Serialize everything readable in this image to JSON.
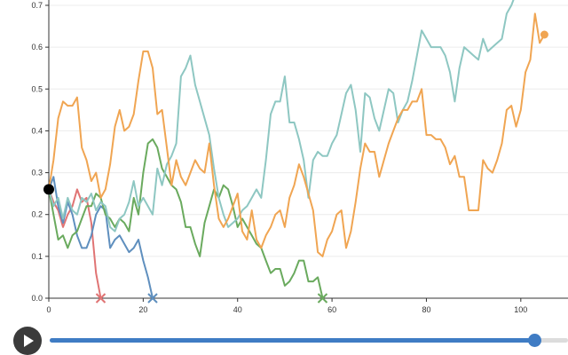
{
  "chart_data": {
    "type": "line",
    "xlim": [
      0,
      110
    ],
    "ylim": [
      0,
      0.7
    ],
    "x_ticks": [
      "0",
      "20",
      "40",
      "60",
      "80",
      "100"
    ],
    "y_ticks": [
      "0.0",
      "0.1",
      "0.2",
      "0.3",
      "0.4",
      "0.5",
      "0.6",
      "0.7"
    ],
    "grid": "horizontal",
    "start_marker": {
      "x": 0,
      "y": 0.26,
      "color": "#000000"
    },
    "series": [
      {
        "color": "#e07474",
        "end_marker": "cross",
        "points": [
          [
            0,
            0.26
          ],
          [
            1,
            0.23
          ],
          [
            2,
            0.21
          ],
          [
            3,
            0.17
          ],
          [
            4,
            0.2
          ],
          [
            5,
            0.22
          ],
          [
            6,
            0.26
          ],
          [
            7,
            0.23
          ],
          [
            8,
            0.24
          ],
          [
            9,
            0.18
          ],
          [
            10,
            0.06
          ],
          [
            11,
            0.0
          ]
        ]
      },
      {
        "color": "#5f8fbe",
        "end_marker": "cross",
        "points": [
          [
            0,
            0.26
          ],
          [
            1,
            0.29
          ],
          [
            2,
            0.22
          ],
          [
            3,
            0.18
          ],
          [
            4,
            0.23
          ],
          [
            5,
            0.2
          ],
          [
            6,
            0.15
          ],
          [
            7,
            0.12
          ],
          [
            8,
            0.12
          ],
          [
            9,
            0.15
          ],
          [
            10,
            0.2
          ],
          [
            11,
            0.22
          ],
          [
            12,
            0.21
          ],
          [
            13,
            0.12
          ],
          [
            14,
            0.14
          ],
          [
            15,
            0.15
          ],
          [
            16,
            0.13
          ],
          [
            17,
            0.11
          ],
          [
            18,
            0.12
          ],
          [
            19,
            0.14
          ],
          [
            20,
            0.09
          ],
          [
            21,
            0.05
          ],
          [
            22,
            0.0
          ]
        ]
      },
      {
        "color": "#6aaa5e",
        "end_marker": "cross",
        "points": [
          [
            0,
            0.26
          ],
          [
            1,
            0.2
          ],
          [
            2,
            0.14
          ],
          [
            3,
            0.15
          ],
          [
            4,
            0.12
          ],
          [
            5,
            0.15
          ],
          [
            6,
            0.16
          ],
          [
            7,
            0.19
          ],
          [
            8,
            0.22
          ],
          [
            9,
            0.22
          ],
          [
            10,
            0.25
          ],
          [
            11,
            0.24
          ],
          [
            12,
            0.2
          ],
          [
            13,
            0.19
          ],
          [
            14,
            0.17
          ],
          [
            15,
            0.19
          ],
          [
            16,
            0.18
          ],
          [
            17,
            0.16
          ],
          [
            18,
            0.24
          ],
          [
            19,
            0.2
          ],
          [
            20,
            0.3
          ],
          [
            21,
            0.37
          ],
          [
            22,
            0.38
          ],
          [
            23,
            0.36
          ],
          [
            24,
            0.31
          ],
          [
            25,
            0.29
          ],
          [
            26,
            0.27
          ],
          [
            27,
            0.26
          ],
          [
            28,
            0.23
          ],
          [
            29,
            0.17
          ],
          [
            30,
            0.17
          ],
          [
            31,
            0.13
          ],
          [
            32,
            0.1
          ],
          [
            33,
            0.18
          ],
          [
            34,
            0.22
          ],
          [
            35,
            0.26
          ],
          [
            36,
            0.24
          ],
          [
            37,
            0.27
          ],
          [
            38,
            0.26
          ],
          [
            39,
            0.22
          ],
          [
            40,
            0.17
          ],
          [
            41,
            0.19
          ],
          [
            42,
            0.17
          ],
          [
            43,
            0.15
          ],
          [
            44,
            0.13
          ],
          [
            45,
            0.12
          ],
          [
            46,
            0.09
          ],
          [
            47,
            0.06
          ],
          [
            48,
            0.07
          ],
          [
            49,
            0.07
          ],
          [
            50,
            0.03
          ],
          [
            51,
            0.04
          ],
          [
            52,
            0.06
          ],
          [
            53,
            0.09
          ],
          [
            54,
            0.09
          ],
          [
            55,
            0.04
          ],
          [
            56,
            0.04
          ],
          [
            57,
            0.05
          ],
          [
            58,
            0.0
          ]
        ]
      },
      {
        "color": "#8ec7c2",
        "end_marker": "none",
        "points": [
          [
            0,
            0.26
          ],
          [
            1,
            0.22
          ],
          [
            2,
            0.24
          ],
          [
            3,
            0.19
          ],
          [
            4,
            0.24
          ],
          [
            5,
            0.21
          ],
          [
            6,
            0.2
          ],
          [
            7,
            0.24
          ],
          [
            8,
            0.23
          ],
          [
            9,
            0.25
          ],
          [
            10,
            0.21
          ],
          [
            11,
            0.23
          ],
          [
            12,
            0.22
          ],
          [
            13,
            0.17
          ],
          [
            14,
            0.16
          ],
          [
            15,
            0.19
          ],
          [
            16,
            0.2
          ],
          [
            17,
            0.23
          ],
          [
            18,
            0.28
          ],
          [
            19,
            0.22
          ],
          [
            20,
            0.24
          ],
          [
            21,
            0.22
          ],
          [
            22,
            0.2
          ],
          [
            23,
            0.31
          ],
          [
            24,
            0.27
          ],
          [
            25,
            0.32
          ],
          [
            26,
            0.34
          ],
          [
            27,
            0.37
          ],
          [
            28,
            0.53
          ],
          [
            29,
            0.55
          ],
          [
            30,
            0.58
          ],
          [
            31,
            0.51
          ],
          [
            32,
            0.47
          ],
          [
            33,
            0.43
          ],
          [
            34,
            0.39
          ],
          [
            35,
            0.31
          ],
          [
            36,
            0.24
          ],
          [
            37,
            0.2
          ],
          [
            38,
            0.17
          ],
          [
            39,
            0.18
          ],
          [
            40,
            0.19
          ],
          [
            41,
            0.21
          ],
          [
            42,
            0.22
          ],
          [
            43,
            0.24
          ],
          [
            44,
            0.26
          ],
          [
            45,
            0.24
          ],
          [
            46,
            0.33
          ],
          [
            47,
            0.44
          ],
          [
            48,
            0.47
          ],
          [
            49,
            0.47
          ],
          [
            50,
            0.53
          ],
          [
            51,
            0.42
          ],
          [
            52,
            0.42
          ],
          [
            53,
            0.38
          ],
          [
            54,
            0.33
          ],
          [
            55,
            0.24
          ],
          [
            56,
            0.33
          ],
          [
            57,
            0.35
          ],
          [
            58,
            0.34
          ],
          [
            59,
            0.34
          ],
          [
            60,
            0.37
          ],
          [
            61,
            0.39
          ],
          [
            62,
            0.44
          ],
          [
            63,
            0.49
          ],
          [
            64,
            0.51
          ],
          [
            65,
            0.45
          ],
          [
            66,
            0.35
          ],
          [
            67,
            0.49
          ],
          [
            68,
            0.48
          ],
          [
            69,
            0.43
          ],
          [
            70,
            0.4
          ],
          [
            71,
            0.45
          ],
          [
            72,
            0.5
          ],
          [
            73,
            0.49
          ],
          [
            74,
            0.42
          ],
          [
            75,
            0.45
          ],
          [
            76,
            0.47
          ],
          [
            77,
            0.52
          ],
          [
            78,
            0.58
          ],
          [
            79,
            0.64
          ],
          [
            80,
            0.62
          ],
          [
            81,
            0.6
          ],
          [
            82,
            0.6
          ],
          [
            83,
            0.6
          ],
          [
            84,
            0.58
          ],
          [
            85,
            0.54
          ],
          [
            86,
            0.47
          ],
          [
            87,
            0.55
          ],
          [
            88,
            0.6
          ],
          [
            89,
            0.59
          ],
          [
            90,
            0.58
          ],
          [
            91,
            0.57
          ],
          [
            92,
            0.62
          ],
          [
            93,
            0.59
          ],
          [
            94,
            0.6
          ],
          [
            95,
            0.61
          ],
          [
            96,
            0.62
          ],
          [
            97,
            0.68
          ],
          [
            98,
            0.7
          ],
          [
            99,
            0.73
          ]
        ]
      },
      {
        "color": "#f0a552",
        "end_marker": "dot",
        "points": [
          [
            0,
            0.26
          ],
          [
            1,
            0.33
          ],
          [
            2,
            0.43
          ],
          [
            3,
            0.47
          ],
          [
            4,
            0.46
          ],
          [
            5,
            0.46
          ],
          [
            6,
            0.48
          ],
          [
            7,
            0.36
          ],
          [
            8,
            0.33
          ],
          [
            9,
            0.28
          ],
          [
            10,
            0.3
          ],
          [
            11,
            0.24
          ],
          [
            12,
            0.26
          ],
          [
            13,
            0.32
          ],
          [
            14,
            0.41
          ],
          [
            15,
            0.45
          ],
          [
            16,
            0.4
          ],
          [
            17,
            0.41
          ],
          [
            18,
            0.44
          ],
          [
            19,
            0.52
          ],
          [
            20,
            0.59
          ],
          [
            21,
            0.59
          ],
          [
            22,
            0.55
          ],
          [
            23,
            0.44
          ],
          [
            24,
            0.45
          ],
          [
            25,
            0.36
          ],
          [
            26,
            0.27
          ],
          [
            27,
            0.33
          ],
          [
            28,
            0.29
          ],
          [
            29,
            0.27
          ],
          [
            30,
            0.3
          ],
          [
            31,
            0.33
          ],
          [
            32,
            0.31
          ],
          [
            33,
            0.3
          ],
          [
            34,
            0.37
          ],
          [
            35,
            0.27
          ],
          [
            36,
            0.19
          ],
          [
            37,
            0.17
          ],
          [
            38,
            0.19
          ],
          [
            39,
            0.22
          ],
          [
            40,
            0.25
          ],
          [
            41,
            0.16
          ],
          [
            42,
            0.14
          ],
          [
            43,
            0.21
          ],
          [
            44,
            0.14
          ],
          [
            45,
            0.12
          ],
          [
            46,
            0.15
          ],
          [
            47,
            0.17
          ],
          [
            48,
            0.2
          ],
          [
            49,
            0.21
          ],
          [
            50,
            0.17
          ],
          [
            51,
            0.24
          ],
          [
            52,
            0.27
          ],
          [
            53,
            0.32
          ],
          [
            54,
            0.29
          ],
          [
            55,
            0.25
          ],
          [
            56,
            0.21
          ],
          [
            57,
            0.11
          ],
          [
            58,
            0.1
          ],
          [
            59,
            0.14
          ],
          [
            60,
            0.16
          ],
          [
            61,
            0.2
          ],
          [
            62,
            0.21
          ],
          [
            63,
            0.12
          ],
          [
            64,
            0.16
          ],
          [
            65,
            0.23
          ],
          [
            66,
            0.31
          ],
          [
            67,
            0.37
          ],
          [
            68,
            0.35
          ],
          [
            69,
            0.35
          ],
          [
            70,
            0.29
          ],
          [
            71,
            0.33
          ],
          [
            72,
            0.37
          ],
          [
            73,
            0.4
          ],
          [
            74,
            0.43
          ],
          [
            75,
            0.45
          ],
          [
            76,
            0.45
          ],
          [
            77,
            0.47
          ],
          [
            78,
            0.47
          ],
          [
            79,
            0.5
          ],
          [
            80,
            0.39
          ],
          [
            81,
            0.39
          ],
          [
            82,
            0.38
          ],
          [
            83,
            0.38
          ],
          [
            84,
            0.36
          ],
          [
            85,
            0.32
          ],
          [
            86,
            0.34
          ],
          [
            87,
            0.29
          ],
          [
            88,
            0.29
          ],
          [
            89,
            0.21
          ],
          [
            90,
            0.21
          ],
          [
            91,
            0.21
          ],
          [
            92,
            0.33
          ],
          [
            93,
            0.31
          ],
          [
            94,
            0.3
          ],
          [
            95,
            0.33
          ],
          [
            96,
            0.37
          ],
          [
            97,
            0.45
          ],
          [
            98,
            0.46
          ],
          [
            99,
            0.41
          ],
          [
            100,
            0.45
          ],
          [
            101,
            0.54
          ],
          [
            102,
            0.57
          ],
          [
            103,
            0.68
          ],
          [
            104,
            0.61
          ],
          [
            105,
            0.63
          ]
        ]
      }
    ]
  },
  "controls": {
    "play_icon": "play-icon",
    "slider_progress": 0.935
  }
}
